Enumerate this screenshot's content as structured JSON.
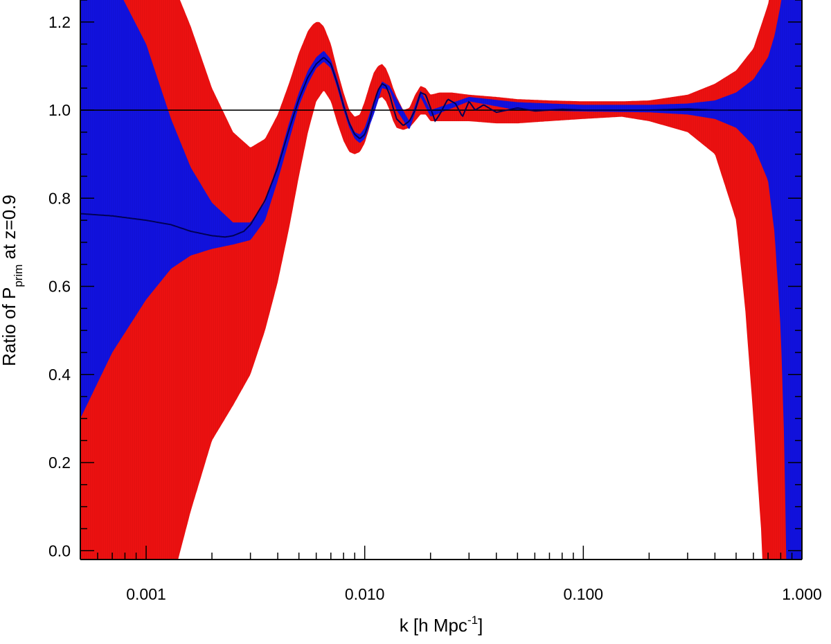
{
  "chart_data": {
    "type": "area",
    "title": "",
    "xlabel": {
      "main": "k [h Mpc",
      "sup": "-1",
      "close": "]"
    },
    "ylabel": {
      "pre": "Ratio of P",
      "sub": "prim",
      "post": " at  z=0.9"
    },
    "xscale": "log",
    "xlim": [
      0.0005,
      1.0
    ],
    "ylim": [
      -0.02,
      1.25
    ],
    "xticks": [
      {
        "value": 0.001,
        "label": "0.001"
      },
      {
        "value": 0.01,
        "label": "0.010"
      },
      {
        "value": 0.1,
        "label": "0.100"
      },
      {
        "value": 1.0,
        "label": "1.000"
      }
    ],
    "yticks": [
      {
        "value": 0.0,
        "label": "0.0"
      },
      {
        "value": 0.2,
        "label": "0.2"
      },
      {
        "value": 0.4,
        "label": "0.4"
      },
      {
        "value": 0.6,
        "label": "0.6"
      },
      {
        "value": 0.8,
        "label": "0.8"
      },
      {
        "value": 1.0,
        "label": "1.0"
      },
      {
        "value": 1.2,
        "label": "1.2"
      }
    ],
    "reference_line": 1.0,
    "grid": false,
    "legend": "none",
    "series": [
      {
        "fill": "#ee1111",
        "upper": {
          "k": [
            0.0005,
            0.0007,
            0.001,
            0.0013,
            0.0016,
            0.002,
            0.0025,
            0.003,
            0.0035,
            0.004,
            0.0045,
            0.005,
            0.0055,
            0.0058,
            0.006,
            0.0062,
            0.0065,
            0.007,
            0.0075,
            0.008,
            0.0085,
            0.009,
            0.0095,
            0.01,
            0.0105,
            0.011,
            0.0115,
            0.012,
            0.0125,
            0.013,
            0.0135,
            0.014,
            0.015,
            0.016,
            0.017,
            0.018,
            0.019,
            0.02,
            0.022,
            0.025,
            0.03,
            0.04,
            0.05,
            0.07,
            0.1,
            0.15,
            0.2,
            0.3,
            0.4,
            0.5,
            0.6,
            0.7,
            0.8,
            0.9,
            1.0
          ],
          "y": [
            1.4,
            1.4,
            1.4,
            1.3,
            1.19,
            1.05,
            0.95,
            0.915,
            0.935,
            0.99,
            1.06,
            1.13,
            1.18,
            1.195,
            1.2,
            1.2,
            1.19,
            1.15,
            1.09,
            1.04,
            1.0,
            0.985,
            0.99,
            1.02,
            1.055,
            1.085,
            1.1,
            1.105,
            1.095,
            1.075,
            1.05,
            1.03,
            1.0,
            1.005,
            1.035,
            1.055,
            1.05,
            1.035,
            1.04,
            1.04,
            1.035,
            1.03,
            1.025,
            1.022,
            1.02,
            1.02,
            1.022,
            1.035,
            1.06,
            1.09,
            1.14,
            1.24,
            1.4,
            1.4,
            1.4
          ]
        },
        "lower": {
          "k": [
            0.0005,
            0.0007,
            0.001,
            0.0013,
            0.0014,
            0.0016,
            0.002,
            0.0025,
            0.003,
            0.0035,
            0.004,
            0.0045,
            0.005,
            0.0055,
            0.006,
            0.0065,
            0.007,
            0.0075,
            0.008,
            0.0085,
            0.009,
            0.0095,
            0.01,
            0.0105,
            0.011,
            0.0115,
            0.012,
            0.0125,
            0.013,
            0.0135,
            0.014,
            0.015,
            0.016,
            0.017,
            0.018,
            0.019,
            0.02,
            0.022,
            0.025,
            0.03,
            0.04,
            0.05,
            0.07,
            0.1,
            0.15,
            0.2,
            0.3,
            0.4,
            0.5,
            0.55,
            0.6,
            0.65,
            0.67,
            0.7,
            1.0
          ],
          "y": [
            -0.1,
            -0.1,
            -0.1,
            -0.07,
            -0.02,
            0.09,
            0.25,
            0.33,
            0.4,
            0.5,
            0.61,
            0.73,
            0.85,
            0.95,
            1.02,
            1.045,
            1.02,
            0.97,
            0.93,
            0.905,
            0.9,
            0.905,
            0.925,
            0.96,
            1.0,
            1.025,
            1.03,
            1.02,
            1.0,
            0.975,
            0.96,
            0.955,
            0.96,
            0.975,
            0.99,
            0.99,
            0.975,
            0.975,
            0.975,
            0.975,
            0.97,
            0.97,
            0.975,
            0.98,
            0.985,
            0.975,
            0.95,
            0.9,
            0.75,
            0.55,
            0.3,
            0.05,
            -0.1,
            -0.1,
            -0.1
          ]
        }
      },
      {
        "fill": "#1212e0",
        "upper": {
          "k": [
            0.0005,
            0.0007,
            0.001,
            0.0013,
            0.0016,
            0.002,
            0.0025,
            0.003,
            0.0035,
            0.004,
            0.0045,
            0.005,
            0.0055,
            0.006,
            0.0065,
            0.007,
            0.0075,
            0.008,
            0.0085,
            0.009,
            0.0095,
            0.01,
            0.011,
            0.012,
            0.013,
            0.014,
            0.016,
            0.018,
            0.02,
            0.03,
            0.05,
            0.1,
            0.2,
            0.3,
            0.4,
            0.5,
            0.6,
            0.7,
            0.75,
            0.8,
            0.85,
            0.88,
            1.0
          ],
          "y": [
            1.4,
            1.3,
            1.15,
            0.98,
            0.87,
            0.79,
            0.745,
            0.745,
            0.79,
            0.88,
            0.97,
            1.04,
            1.09,
            1.12,
            1.135,
            1.115,
            1.07,
            1.02,
            0.975,
            0.95,
            0.945,
            0.96,
            1.02,
            1.065,
            1.055,
            1.025,
            0.975,
            1.045,
            1.0,
            1.03,
            1.018,
            1.012,
            1.012,
            1.015,
            1.022,
            1.04,
            1.07,
            1.12,
            1.17,
            1.24,
            1.33,
            1.4,
            1.4
          ]
        },
        "lower": {
          "k": [
            0.0005,
            0.0007,
            0.001,
            0.0013,
            0.0016,
            0.002,
            0.0025,
            0.003,
            0.0035,
            0.004,
            0.0045,
            0.005,
            0.0055,
            0.006,
            0.0065,
            0.007,
            0.0075,
            0.008,
            0.0085,
            0.009,
            0.0095,
            0.01,
            0.011,
            0.012,
            0.013,
            0.014,
            0.016,
            0.018,
            0.02,
            0.03,
            0.05,
            0.1,
            0.2,
            0.3,
            0.4,
            0.5,
            0.6,
            0.7,
            0.75,
            0.8,
            0.83,
            0.85,
            1.0
          ],
          "y": [
            0.3,
            0.45,
            0.57,
            0.64,
            0.67,
            0.685,
            0.695,
            0.705,
            0.75,
            0.84,
            0.93,
            1.01,
            1.06,
            1.095,
            1.11,
            1.095,
            1.05,
            1.0,
            0.96,
            0.935,
            0.925,
            0.935,
            0.99,
            1.05,
            1.045,
            1.0,
            0.955,
            1.03,
            0.985,
            1.02,
            1.0,
            0.997,
            0.995,
            0.99,
            0.98,
            0.96,
            0.92,
            0.84,
            0.72,
            0.5,
            0.25,
            -0.05,
            -0.1
          ]
        }
      }
    ],
    "lines": [
      {
        "color": "#000055",
        "k": [
          0.0005,
          0.0007,
          0.001,
          0.0013,
          0.0016,
          0.002,
          0.0023,
          0.0025,
          0.0028,
          0.003,
          0.0035,
          0.004,
          0.0045,
          0.005,
          0.0055,
          0.006,
          0.0065,
          0.007,
          0.0075,
          0.008,
          0.0085,
          0.009,
          0.0095,
          0.01,
          0.0105,
          0.011,
          0.0115,
          0.012,
          0.0125,
          0.013,
          0.0135,
          0.014,
          0.015,
          0.016,
          0.017,
          0.018,
          0.019,
          0.02,
          0.021,
          0.022,
          0.024,
          0.026,
          0.028,
          0.03,
          0.032,
          0.035,
          0.04,
          0.05,
          0.06,
          0.08,
          0.1,
          0.15,
          0.2,
          0.3,
          0.4,
          0.5,
          0.6,
          1.0
        ],
        "y": [
          0.765,
          0.76,
          0.75,
          0.74,
          0.725,
          0.715,
          0.712,
          0.715,
          0.725,
          0.74,
          0.795,
          0.87,
          0.955,
          1.025,
          1.075,
          1.105,
          1.12,
          1.105,
          1.06,
          1.01,
          0.97,
          0.945,
          0.935,
          0.945,
          0.975,
          1.015,
          1.045,
          1.06,
          1.055,
          1.035,
          1.005,
          0.98,
          0.965,
          0.975,
          1.0,
          1.04,
          1.035,
          1.005,
          0.975,
          0.99,
          1.025,
          1.015,
          0.985,
          1.02,
          1.0,
          1.012,
          0.995,
          1.005,
          0.998,
          1.002,
          1.0,
          1.0,
          1.0,
          1.003,
          1.0,
          1.0,
          1.0,
          1.0
        ]
      }
    ]
  }
}
